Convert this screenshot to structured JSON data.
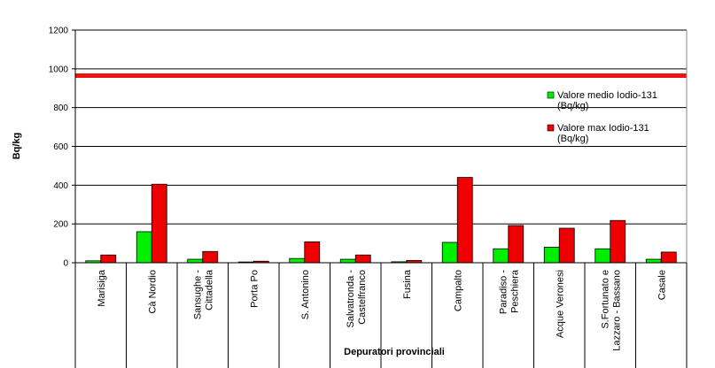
{
  "chart_data": {
    "type": "bar",
    "title": "",
    "xlabel": "Depuratori provinciali",
    "ylabel": "Bq/kg",
    "ylim": [
      0,
      1200
    ],
    "yticks": [
      0,
      200,
      400,
      600,
      800,
      1000,
      1200
    ],
    "grid": true,
    "legend_position": "right",
    "categories": [
      [
        "Marisiga"
      ],
      [
        "Cà Nordio"
      ],
      [
        "Sansughe -",
        "Cittadella"
      ],
      [
        "Porta Po"
      ],
      [
        "S. Antonino"
      ],
      [
        "Salvatronda -",
        "Castelfranco"
      ],
      [
        "Fusina"
      ],
      [
        "Campalto"
      ],
      [
        "Paradiso -",
        "Peschiera"
      ],
      [
        "Acque Veronesi"
      ],
      [
        "S.Fortunato e",
        "Lazzaro - Bassano"
      ],
      [
        "Casale"
      ]
    ],
    "series": [
      {
        "name": [
          "Valore medio Iodio-131",
          "(Bq/kg)"
        ],
        "color": "#00ee00",
        "values": [
          10,
          160,
          18,
          4,
          22,
          18,
          5,
          105,
          72,
          80,
          72,
          18
        ]
      },
      {
        "name": [
          "Valore max Iodio-131",
          "(Bq/kg)"
        ],
        "color": "#ee0000",
        "values": [
          40,
          405,
          58,
          8,
          108,
          40,
          12,
          440,
          192,
          178,
          218,
          55
        ]
      }
    ],
    "reference_line": {
      "value": 965,
      "color": "#ee1111"
    }
  }
}
